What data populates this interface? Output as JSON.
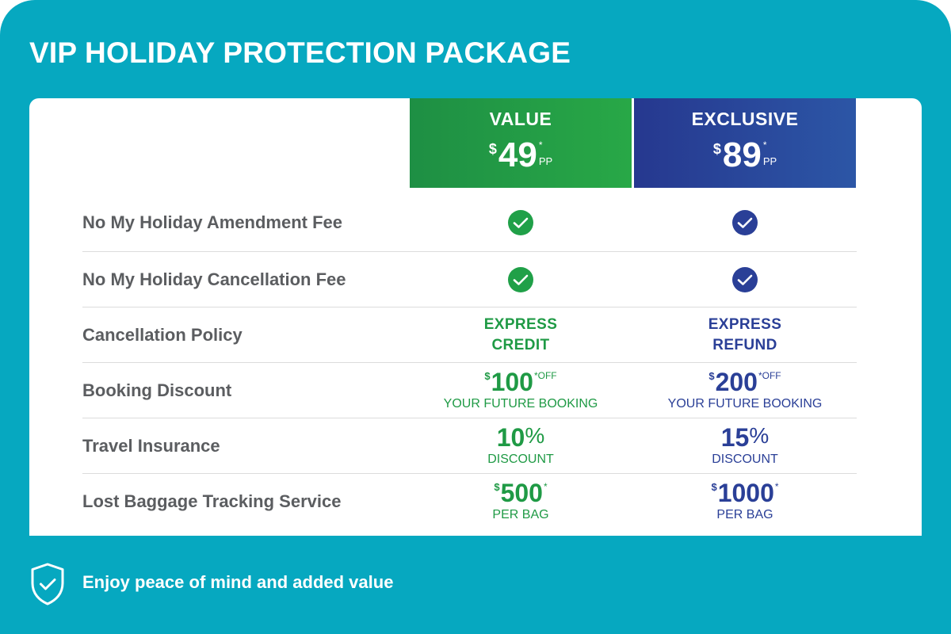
{
  "title": "VIP HOLIDAY PROTECTION PACKAGE",
  "colors": {
    "background": "#06a8c0",
    "value_plan": "#20a048",
    "exclusive_plan": "#2a3f97",
    "label_text": "#5b5d60"
  },
  "plans": [
    {
      "name": "VALUE",
      "currency": "$",
      "price": "49",
      "asterisk": "*",
      "unit": "PP"
    },
    {
      "name": "EXCLUSIVE",
      "currency": "$",
      "price": "89",
      "asterisk": "*",
      "unit": "PP"
    }
  ],
  "rows": [
    {
      "label": "No My Holiday Amendment Fee",
      "value": {
        "icon": "check-icon"
      },
      "exclusive": {
        "icon": "check-icon"
      }
    },
    {
      "label": "No My Holiday Cancellation Fee",
      "value": {
        "icon": "check-icon"
      },
      "exclusive": {
        "icon": "check-icon"
      }
    },
    {
      "label": "Cancellation Policy",
      "value": {
        "line1": "EXPRESS",
        "line2": "CREDIT"
      },
      "exclusive": {
        "line1": "EXPRESS",
        "line2": "REFUND"
      }
    },
    {
      "label": "Booking Discount",
      "value": {
        "currency": "$",
        "amount": "100",
        "suffix": "*OFF",
        "sub": "YOUR FUTURE BOOKING"
      },
      "exclusive": {
        "currency": "$",
        "amount": "200",
        "suffix": "*OFF",
        "sub": "YOUR FUTURE BOOKING"
      }
    },
    {
      "label": "Travel Insurance",
      "value": {
        "amount": "10",
        "percent": "%",
        "sub": "DISCOUNT"
      },
      "exclusive": {
        "amount": "15",
        "percent": "%",
        "sub": "DISCOUNT"
      }
    },
    {
      "label": "Lost Baggage Tracking Service",
      "value": {
        "currency": "$",
        "amount": "500",
        "suffix": "*",
        "sub": "PER BAG"
      },
      "exclusive": {
        "currency": "$",
        "amount": "1000",
        "suffix": "*",
        "sub": "PER BAG"
      }
    }
  ],
  "footer": {
    "icon": "shield-check-icon",
    "text": "Enjoy peace of mind and added value"
  }
}
